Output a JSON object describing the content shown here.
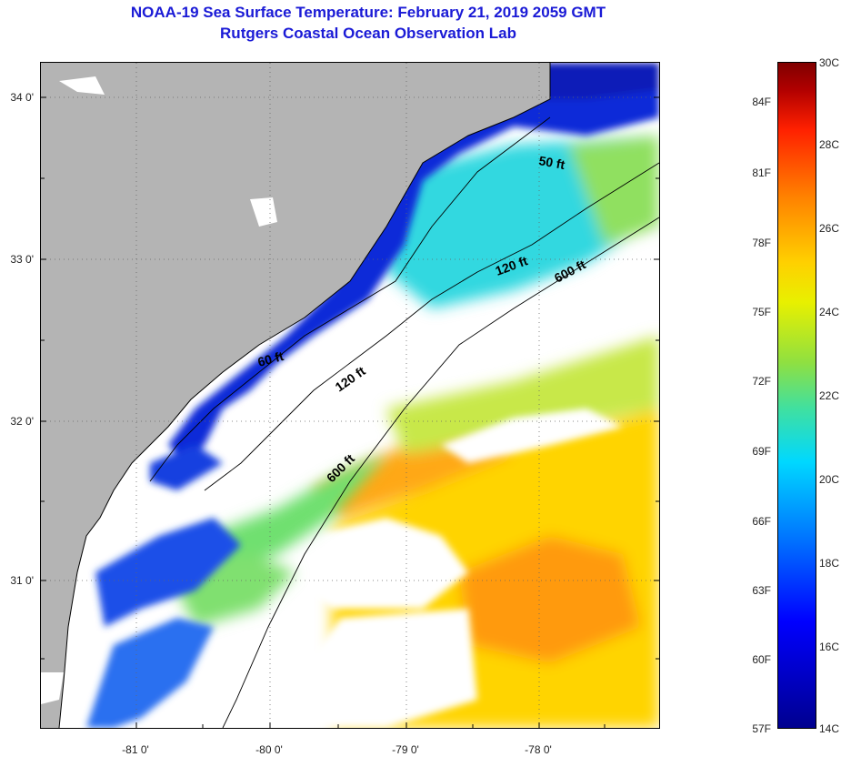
{
  "title_line1": "NOAA-19 Sea Surface Temperature:  February 21, 2019 2059 GMT",
  "title_line2": "Rutgers Coastal Ocean Observation Lab",
  "lat_labels": [
    "34 0'",
    "33 0'",
    "32 0'",
    "31 0'"
  ],
  "lon_labels": [
    "-81 0'",
    "-80 0'",
    "-79 0'",
    "-78 0'"
  ],
  "isobath_labels": [
    "50 ft",
    "120 ft",
    "600 ft",
    "60 ft",
    "120 ft",
    "600 ft"
  ],
  "colorbar": {
    "fahrenheit": [
      "84F",
      "81F",
      "78F",
      "75F",
      "72F",
      "69F",
      "66F",
      "63F",
      "60F",
      "57F"
    ],
    "celsius": [
      "30C",
      "28C",
      "26C",
      "24C",
      "22C",
      "20C",
      "18C",
      "16C",
      "14C"
    ]
  },
  "colors": {
    "land": "#b4b4b4",
    "cloud": "#ffffff",
    "title": "#1a1ad6"
  }
}
